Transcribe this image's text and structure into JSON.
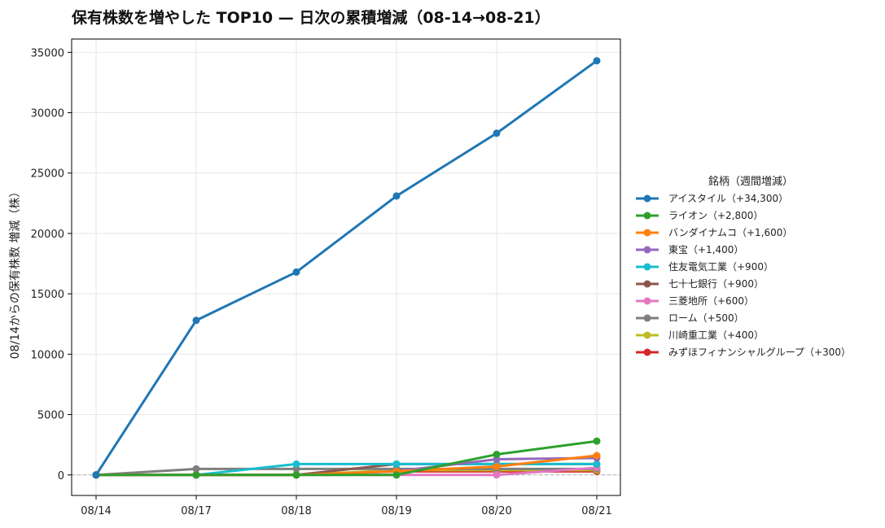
{
  "chart_data": {
    "type": "line",
    "title": "保有株数を増やした TOP10 — 日次の累積増減（08-14→08-21）",
    "xlabel": "",
    "ylabel": "08/14からの保有株数 増減（株）",
    "categories": [
      "08/14",
      "08/17",
      "08/18",
      "08/19",
      "08/20",
      "08/21"
    ],
    "ylim": [
      -1700,
      36100
    ],
    "yticks": [
      0,
      5000,
      10000,
      15000,
      20000,
      25000,
      30000,
      35000
    ],
    "grid": true,
    "legend_title": "銘柄（週間増減）",
    "legend_position": "right",
    "baseline": 0,
    "series": [
      {
        "name": "アイスタイル（+34,300）",
        "color": "#1f77b4",
        "values": [
          0,
          12800,
          16800,
          23100,
          28300,
          34300
        ]
      },
      {
        "name": "ライオン（+2,800）",
        "color": "#2ca02c",
        "values": [
          0,
          0,
          0,
          0,
          1700,
          2800
        ]
      },
      {
        "name": "バンダイナムコ（+1,600）",
        "color": "#ff7f0e",
        "values": [
          0,
          0,
          0,
          300,
          700,
          1600
        ]
      },
      {
        "name": "東宝（+1,400）",
        "color": "#9467bd",
        "values": [
          0,
          0,
          0,
          300,
          1300,
          1400
        ]
      },
      {
        "name": "住友電気工業（+900）",
        "color": "#17becf",
        "values": [
          0,
          0,
          900,
          900,
          900,
          900
        ]
      },
      {
        "name": "七十七銀行（+900）",
        "color": "#8c564b",
        "values": [
          0,
          0,
          0,
          900,
          900,
          900
        ]
      },
      {
        "name": "三菱地所（+600）",
        "color": "#e377c2",
        "values": [
          0,
          0,
          0,
          0,
          0,
          600
        ]
      },
      {
        "name": "ローム（+500）",
        "color": "#7f7f7f",
        "values": [
          0,
          500,
          500,
          500,
          500,
          500
        ]
      },
      {
        "name": "川崎重工業（+400）",
        "color": "#bcbd22",
        "values": [
          0,
          0,
          0,
          400,
          400,
          400
        ]
      },
      {
        "name": "みずほフィナンシャルグループ（+300）",
        "color": "#d62728",
        "values": [
          0,
          0,
          0,
          300,
          300,
          300
        ]
      }
    ]
  }
}
